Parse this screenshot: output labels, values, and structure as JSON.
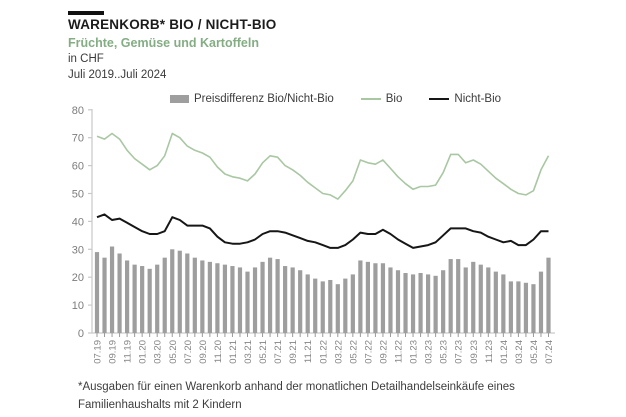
{
  "header": {
    "title": "WARENKORB* BIO / NICHT-BIO",
    "subtitle": "Früchte, Gemüse und Kartoffeln",
    "unit_line": "in CHF",
    "range_line": "Juli 2019..Juli 2024"
  },
  "footnote": {
    "line1": "*Ausgaben für einen Warenkorb anhand der monatlichen Detailhandelseinkäufe eines",
    "line2": "Familienhaushalts mit 2 Kindern"
  },
  "colors": {
    "bar": "#9e9e9e",
    "bio_line": "#a9c7a3",
    "nichtbio_line": "#161616",
    "axis": "#c9c9c9",
    "tick_label": "#858585"
  },
  "chart_data": {
    "type": "bar",
    "title": "WARENKORB* BIO / NICHT-BIO",
    "subtitle": "Früchte, Gemüse und Kartoffeln",
    "xlabel": "",
    "ylabel": "CHF",
    "ylim": [
      0,
      80
    ],
    "y_ticks": [
      0,
      10,
      20,
      30,
      40,
      50,
      60,
      70,
      80
    ],
    "grid": false,
    "legend_position": "top",
    "x_tick_labels": [
      "07.19",
      "09.19",
      "11.19",
      "01.20",
      "03.20",
      "05.20",
      "07.20",
      "09.20",
      "11.20",
      "01.21",
      "03.21",
      "05.21",
      "07.21",
      "09.21",
      "11.21",
      "01.22",
      "03.22",
      "05.22",
      "07.22",
      "09.22",
      "11.22",
      "01.23",
      "03.23",
      "05.23",
      "07.23",
      "09.23",
      "11.23",
      "01.24",
      "03.24",
      "05.24",
      "07.24"
    ],
    "categories": [
      "07.19",
      "08.19",
      "09.19",
      "10.19",
      "11.19",
      "12.19",
      "01.20",
      "02.20",
      "03.20",
      "04.20",
      "05.20",
      "06.20",
      "07.20",
      "08.20",
      "09.20",
      "10.20",
      "11.20",
      "12.20",
      "01.21",
      "02.21",
      "03.21",
      "04.21",
      "05.21",
      "06.21",
      "07.21",
      "08.21",
      "09.21",
      "10.21",
      "11.21",
      "12.21",
      "01.22",
      "02.22",
      "03.22",
      "04.22",
      "05.22",
      "06.22",
      "07.22",
      "08.22",
      "09.22",
      "10.22",
      "11.22",
      "12.22",
      "01.23",
      "02.23",
      "03.23",
      "04.23",
      "05.23",
      "06.23",
      "07.23",
      "08.23",
      "09.23",
      "10.23",
      "11.23",
      "12.23",
      "01.24",
      "02.24",
      "03.24",
      "04.24",
      "05.24",
      "06.24",
      "07.24"
    ],
    "series": [
      {
        "name": "Preisdifferenz Bio/Nicht-Bio",
        "type": "bar",
        "color": "#9e9e9e",
        "values": [
          29,
          27,
          31,
          28.5,
          26,
          24.5,
          24,
          23,
          24.5,
          27,
          30,
          29.5,
          28.5,
          27,
          26,
          25.5,
          25,
          24.5,
          24,
          23.5,
          22,
          23.5,
          25.5,
          27,
          26.5,
          24,
          23.5,
          22.5,
          21,
          19.5,
          18.5,
          19,
          17.5,
          19.5,
          21,
          26,
          25.5,
          25,
          25,
          23.5,
          22.5,
          21.5,
          21,
          21.5,
          21,
          20.5,
          22.5,
          26.5,
          26.5,
          23.5,
          25.5,
          24.5,
          23.5,
          22,
          21,
          18.5,
          18.5,
          18,
          17.5,
          22,
          27
        ]
      },
      {
        "name": "Bio",
        "type": "line",
        "color": "#a9c7a3",
        "values": [
          70.5,
          69.5,
          71.5,
          69.5,
          65.5,
          62.5,
          60.5,
          58.5,
          60,
          63.5,
          71.5,
          70,
          67,
          65.5,
          64.5,
          63,
          59.5,
          57,
          56,
          55.5,
          54.5,
          57,
          61,
          63.5,
          63,
          60,
          58.5,
          56.5,
          54,
          52,
          50,
          49.5,
          48,
          51,
          54.5,
          62,
          61,
          60.5,
          62,
          59,
          56,
          53.5,
          51.5,
          52.5,
          52.5,
          53,
          57.5,
          64,
          64,
          61,
          62,
          60.5,
          58,
          55.5,
          53.5,
          51.5,
          50,
          49.5,
          51,
          58.5,
          63.5
        ]
      },
      {
        "name": "Nicht-Bio",
        "type": "line",
        "color": "#161616",
        "values": [
          41.5,
          42.5,
          40.5,
          41,
          39.5,
          38,
          36.5,
          35.5,
          35.5,
          36.5,
          41.5,
          40.5,
          38.5,
          38.5,
          38.5,
          37.5,
          34.5,
          32.5,
          32,
          32,
          32.5,
          33.5,
          35.5,
          36.5,
          36.5,
          36,
          35,
          34,
          33,
          32.5,
          31.5,
          30.5,
          30.5,
          31.5,
          33.5,
          36,
          35.5,
          35.5,
          37,
          35.5,
          33.5,
          32,
          30.5,
          31,
          31.5,
          32.5,
          35,
          37.5,
          37.5,
          37.5,
          36.5,
          36,
          34.5,
          33.5,
          32.5,
          33,
          31.5,
          31.5,
          33.5,
          36.5,
          36.5
        ]
      }
    ]
  }
}
